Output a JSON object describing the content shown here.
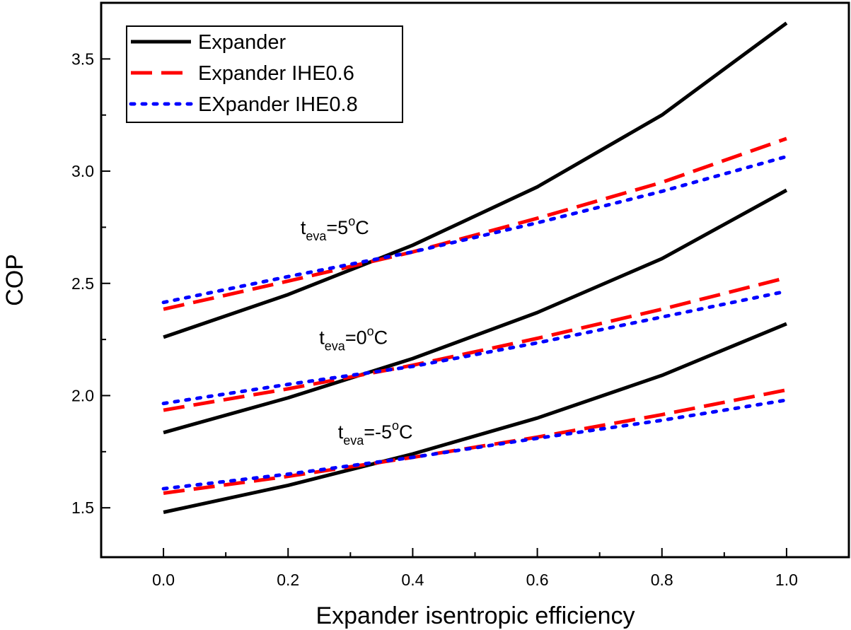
{
  "chart_data": {
    "type": "line",
    "title": "",
    "xlabel": "Expander isentropic efficiency",
    "ylabel": "COP",
    "xlim": [
      -0.1,
      1.1
    ],
    "ylim": [
      1.28,
      3.75
    ],
    "xticks": [
      0.0,
      0.2,
      0.4,
      0.6,
      0.8,
      1.0
    ],
    "xtick_labels": [
      "0.0",
      "0.2",
      "0.4",
      "0.6",
      "0.8",
      "1.0"
    ],
    "yticks": [
      1.5,
      2.0,
      2.5,
      3.0,
      3.5
    ],
    "ytick_labels": [
      "1.5",
      "2.0",
      "2.5",
      "3.0",
      "3.5"
    ],
    "grid": false,
    "legend_position": "top-left",
    "legend": [
      {
        "label": "Expander",
        "color": "#000000",
        "style": "solid"
      },
      {
        "label": "Expander IHE0.6",
        "color": "#ff0000",
        "style": "dashed"
      },
      {
        "label": "EXpander IHE0.8",
        "color": "#0000ff",
        "style": "dotted"
      }
    ],
    "x": [
      0.0,
      0.2,
      0.4,
      0.6,
      0.8,
      1.0
    ],
    "series": [
      {
        "group": "t_eva=5°C",
        "kind": "Expander",
        "values": [
          2.26,
          2.45,
          2.67,
          2.93,
          3.25,
          3.66
        ]
      },
      {
        "group": "t_eva=5°C",
        "kind": "Expander IHE0.6",
        "values": [
          2.385,
          2.51,
          2.64,
          2.79,
          2.95,
          3.145
        ]
      },
      {
        "group": "t_eva=5°C",
        "kind": "EXpander IHE0.8",
        "values": [
          2.415,
          2.53,
          2.64,
          2.77,
          2.91,
          3.065
        ]
      },
      {
        "group": "t_eva=0°C",
        "kind": "Expander",
        "values": [
          1.835,
          1.99,
          2.165,
          2.37,
          2.61,
          2.915
        ]
      },
      {
        "group": "t_eva=0°C",
        "kind": "Expander IHE0.6",
        "values": [
          1.935,
          2.03,
          2.135,
          2.255,
          2.385,
          2.525
        ]
      },
      {
        "group": "t_eva=0°C",
        "kind": "EXpander IHE0.8",
        "values": [
          1.965,
          2.05,
          2.13,
          2.235,
          2.35,
          2.465
        ]
      },
      {
        "group": "t_eva=-5°C",
        "kind": "Expander",
        "values": [
          1.48,
          1.6,
          1.74,
          1.9,
          2.09,
          2.32
        ]
      },
      {
        "group": "t_eva=-5°C",
        "kind": "Expander IHE0.6",
        "values": [
          1.565,
          1.64,
          1.725,
          1.815,
          1.915,
          2.025
        ]
      },
      {
        "group": "t_eva=-5°C",
        "kind": "EXpander IHE0.8",
        "values": [
          1.585,
          1.65,
          1.725,
          1.81,
          1.89,
          1.98
        ]
      }
    ],
    "annotations": [
      {
        "main": "t",
        "sub": "eva",
        "text": "=5",
        "sup": "o",
        "unit": "C",
        "x": 0.22,
        "y": 2.72
      },
      {
        "main": "t",
        "sub": "eva",
        "text": "=0",
        "sup": "o",
        "unit": "C",
        "x": 0.25,
        "y": 2.23
      },
      {
        "main": "t",
        "sub": "eva",
        "text": "=-5",
        "sup": "o",
        "unit": "C",
        "x": 0.28,
        "y": 1.81
      }
    ]
  }
}
